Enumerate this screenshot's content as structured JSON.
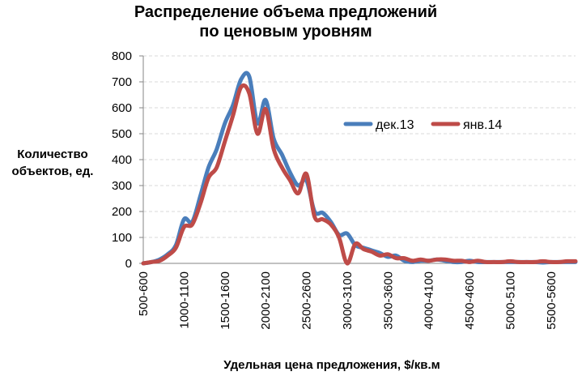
{
  "chart_data": {
    "type": "line",
    "title_lines": [
      "Распределение объема предложений",
      "по ценовым уровням"
    ],
    "ylabel_lines": [
      "Количество",
      "объектов, ед."
    ],
    "xlabel": "Удельная цена предложения, $/кв.м",
    "ylim": [
      0,
      800
    ],
    "yticks": [
      0,
      100,
      200,
      300,
      400,
      500,
      600,
      700,
      800
    ],
    "xrange": [
      500,
      5800
    ],
    "x_tick_labels": [
      {
        "x": 500,
        "label": "500-600"
      },
      {
        "x": 1000,
        "label": "1000-1100"
      },
      {
        "x": 1500,
        "label": "1500-1600"
      },
      {
        "x": 2000,
        "label": "2000-2100"
      },
      {
        "x": 2500,
        "label": "2500-2600"
      },
      {
        "x": 3000,
        "label": "3000-3100"
      },
      {
        "x": 3500,
        "label": "3500-3600"
      },
      {
        "x": 4000,
        "label": "4000-4100"
      },
      {
        "x": 4500,
        "label": "4500-4600"
      },
      {
        "x": 5000,
        "label": "5000-5100"
      },
      {
        "x": 5500,
        "label": "5500-5600"
      }
    ],
    "grid": true,
    "legend_position": "top-right",
    "series": [
      {
        "name": "дек.13",
        "color": "#4a7ebb",
        "points": [
          [
            500,
            0
          ],
          [
            600,
            5
          ],
          [
            700,
            15
          ],
          [
            800,
            35
          ],
          [
            900,
            70
          ],
          [
            1000,
            170
          ],
          [
            1100,
            160
          ],
          [
            1200,
            260
          ],
          [
            1300,
            370
          ],
          [
            1400,
            440
          ],
          [
            1500,
            540
          ],
          [
            1600,
            610
          ],
          [
            1700,
            710
          ],
          [
            1800,
            720
          ],
          [
            1900,
            540
          ],
          [
            2000,
            630
          ],
          [
            2100,
            480
          ],
          [
            2200,
            420
          ],
          [
            2300,
            350
          ],
          [
            2400,
            300
          ],
          [
            2500,
            320
          ],
          [
            2600,
            200
          ],
          [
            2700,
            195
          ],
          [
            2800,
            160
          ],
          [
            2900,
            110
          ],
          [
            3000,
            115
          ],
          [
            3100,
            70
          ],
          [
            3200,
            60
          ],
          [
            3300,
            50
          ],
          [
            3400,
            40
          ],
          [
            3500,
            25
          ],
          [
            3600,
            30
          ],
          [
            3700,
            10
          ],
          [
            3800,
            5
          ],
          [
            3900,
            10
          ],
          [
            4000,
            10
          ],
          [
            4100,
            15
          ],
          [
            4200,
            10
          ],
          [
            4300,
            5
          ],
          [
            4400,
            5
          ],
          [
            4500,
            10
          ],
          [
            4600,
            5
          ],
          [
            4700,
            5
          ],
          [
            4800,
            5
          ],
          [
            4900,
            5
          ],
          [
            5000,
            5
          ],
          [
            5100,
            5
          ],
          [
            5200,
            5
          ],
          [
            5300,
            5
          ],
          [
            5400,
            3
          ],
          [
            5500,
            5
          ],
          [
            5600,
            5
          ],
          [
            5700,
            5
          ],
          [
            5800,
            5
          ]
        ]
      },
      {
        "name": "янв.14",
        "color": "#be4b48",
        "points": [
          [
            500,
            0
          ],
          [
            600,
            5
          ],
          [
            700,
            10
          ],
          [
            800,
            30
          ],
          [
            900,
            60
          ],
          [
            1000,
            140
          ],
          [
            1100,
            150
          ],
          [
            1200,
            230
          ],
          [
            1300,
            330
          ],
          [
            1400,
            370
          ],
          [
            1500,
            470
          ],
          [
            1600,
            570
          ],
          [
            1700,
            680
          ],
          [
            1800,
            655
          ],
          [
            1900,
            500
          ],
          [
            2000,
            595
          ],
          [
            2100,
            440
          ],
          [
            2200,
            370
          ],
          [
            2300,
            320
          ],
          [
            2400,
            270
          ],
          [
            2500,
            345
          ],
          [
            2600,
            180
          ],
          [
            2700,
            170
          ],
          [
            2800,
            150
          ],
          [
            2900,
            100
          ],
          [
            3000,
            0
          ],
          [
            3100,
            75
          ],
          [
            3200,
            55
          ],
          [
            3300,
            45
          ],
          [
            3400,
            30
          ],
          [
            3500,
            35
          ],
          [
            3600,
            20
          ],
          [
            3700,
            20
          ],
          [
            3800,
            10
          ],
          [
            3900,
            15
          ],
          [
            4000,
            10
          ],
          [
            4100,
            15
          ],
          [
            4200,
            15
          ],
          [
            4300,
            10
          ],
          [
            4400,
            10
          ],
          [
            4500,
            5
          ],
          [
            4600,
            10
          ],
          [
            4700,
            5
          ],
          [
            4800,
            5
          ],
          [
            4900,
            5
          ],
          [
            5000,
            8
          ],
          [
            5100,
            5
          ],
          [
            5200,
            5
          ],
          [
            5300,
            5
          ],
          [
            5400,
            8
          ],
          [
            5500,
            5
          ],
          [
            5600,
            5
          ],
          [
            5700,
            8
          ],
          [
            5800,
            8
          ]
        ]
      }
    ]
  }
}
